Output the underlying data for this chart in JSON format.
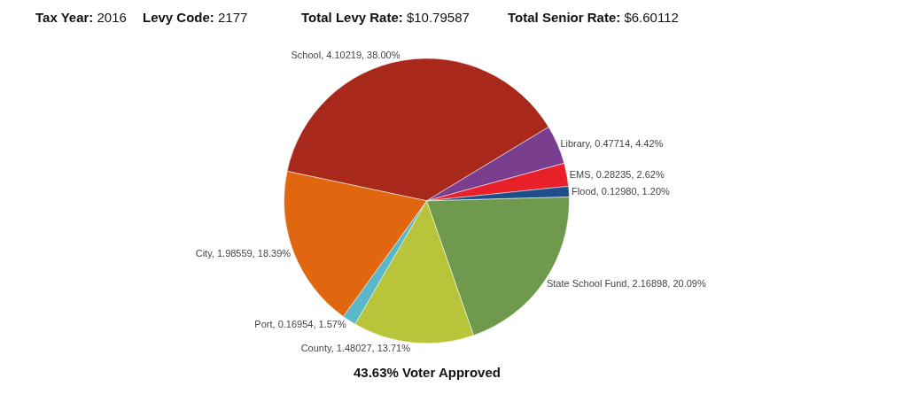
{
  "chart_data": {
    "type": "pie",
    "categories": [
      "School",
      "Library",
      "EMS",
      "Flood",
      "State School Fund",
      "County",
      "Port",
      "City"
    ],
    "values": [
      4.10219,
      0.47714,
      0.28235,
      0.1298,
      2.16898,
      1.48027,
      0.16954,
      1.98559
    ],
    "value_labels": [
      "4.10219, 38.00%",
      "0.47714, 4.42%",
      "0.28235, 2.62%",
      "0.12980, 1.20%",
      "2.16898, 20.09%",
      "1.48027, 13.71%",
      "0.16954, 1.57%",
      "1.98559, 18.39%"
    ],
    "colors": [
      "#a8281c",
      "#7a3e8e",
      "#e8202a",
      "#1f4e8c",
      "#6f9a4e",
      "#b8c43a",
      "#5bb8c8",
      "#e0660f"
    ],
    "annotations": [
      "Tax Year: 2016",
      "Levy Code: 2177",
      "Total Levy Rate: $10.79587",
      "Total Senior Rate: $6.60112",
      "43.63% Voter Approved"
    ],
    "legend": false
  }
}
